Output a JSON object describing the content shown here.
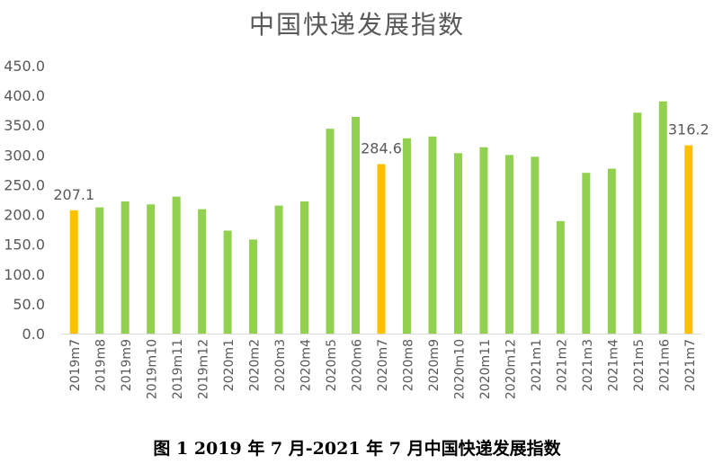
{
  "chart_data": {
    "type": "bar",
    "title": "中国快递发展指数",
    "caption": "图 1 2019 年 7 月-2021 年 7 月中国快递发展指数",
    "xlabel": "",
    "ylabel": "",
    "ylim": [
      0,
      450
    ],
    "yticks": [
      "0.0",
      "50.0",
      "100.0",
      "150.0",
      "200.0",
      "250.0",
      "300.0",
      "350.0",
      "400.0",
      "450.0"
    ],
    "grid": false,
    "legend": "none",
    "categories": [
      "2019m7",
      "2019m8",
      "2019m9",
      "2019m10",
      "2019m11",
      "2019m12",
      "2020m1",
      "2020m2",
      "2020m3",
      "2020m4",
      "2020m5",
      "2020m6",
      "2020m7",
      "2020m8",
      "2020m9",
      "2020m10",
      "2020m11",
      "2020m12",
      "2021m1",
      "2021m2",
      "2021m3",
      "2021m4",
      "2021m5",
      "2021m6",
      "2021m7"
    ],
    "values": [
      207.1,
      212,
      222,
      217,
      230,
      209,
      173,
      158,
      215,
      222,
      344,
      364,
      284.6,
      328,
      331,
      303,
      313,
      300,
      297,
      189,
      270,
      277,
      371,
      390,
      316.2
    ],
    "highlight_indices": [
      0,
      12,
      24
    ],
    "data_labels": [
      {
        "index": 0,
        "text": "207.1"
      },
      {
        "index": 12,
        "text": "284.6"
      },
      {
        "index": 24,
        "text": "316.2"
      }
    ],
    "colors": {
      "bar": "#92D050",
      "highlight": "#FFC000",
      "axis": "#D9D9D9",
      "text": "#595959"
    }
  }
}
